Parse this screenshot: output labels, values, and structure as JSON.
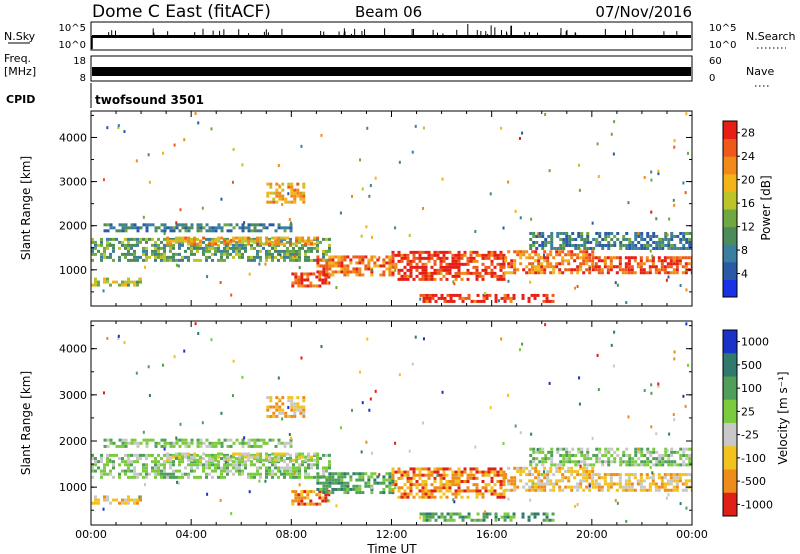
{
  "header": {
    "station": "Dome C East (fitACF)",
    "beam": "Beam 06",
    "date": "07/Nov/2016"
  },
  "noise_panel": {
    "left_label": "N.Sky",
    "right_label": "N.Search",
    "left_ticks": [
      "10^5",
      "10^0"
    ],
    "right_ticks": [
      "10^5",
      "10^0"
    ]
  },
  "freq_panel": {
    "left_label_line1": "Freq.",
    "left_label_line2": "[MHz]",
    "right_label": "Nave",
    "left_ticks": [
      "18",
      "8"
    ],
    "right_ticks": [
      "60",
      "0"
    ]
  },
  "cpid": {
    "label": "CPID",
    "value": "twofsound 3501"
  },
  "x_axis": {
    "label": "Time UT",
    "ticks": [
      "00:00",
      "04:00",
      "08:00",
      "12:00",
      "16:00",
      "20:00",
      "00:00"
    ],
    "range_hours": [
      0,
      24
    ]
  },
  "power_panel": {
    "ylabel": "Slant Range [km]",
    "yticks": [
      "1000",
      "2000",
      "3000",
      "4000"
    ],
    "colorbar_label": "Power [dB]",
    "colorbar_ticks": [
      "4",
      "8",
      "12",
      "16",
      "20",
      "24",
      "28"
    ]
  },
  "velocity_panel": {
    "ylabel": "Slant Range [km]",
    "yticks": [
      "1000",
      "2000",
      "3000",
      "4000"
    ],
    "colorbar_label": "Velocity [m s⁻¹]",
    "colorbar_ticks": [
      "1000",
      "500",
      "100",
      "25",
      "-25",
      "-100",
      "-500",
      "-1000"
    ]
  },
  "chart_data": {
    "type": "heatmap",
    "x_units": "hours UT",
    "y_units": "km",
    "xlim": [
      0,
      24
    ],
    "ylim": [
      180,
      4600
    ],
    "power_colorscale": {
      "range_db": [
        0,
        30
      ],
      "colors": [
        "#1a32e6",
        "#2a5aa6",
        "#3a7fa0",
        "#4c8c5c",
        "#6fa840",
        "#bcc42a",
        "#f2b418",
        "#f28a1a",
        "#ee5a1a",
        "#e61e14"
      ]
    },
    "velocity_colorscale": {
      "levels": [
        1000,
        500,
        100,
        25,
        -25,
        -100,
        -500,
        -1000
      ],
      "colors": [
        "#1a32c8",
        "#2f7a6c",
        "#4f9e5a",
        "#7acb3e",
        "#c8c8c8",
        "#f2c21e",
        "#ee8c1a",
        "#e02018"
      ]
    },
    "echo_regions": [
      {
        "t": [
          0.0,
          2.0
        ],
        "r": [
          620,
          800
        ],
        "power": 16,
        "vel": -100
      },
      {
        "t": [
          0.0,
          9.5
        ],
        "r": [
          1180,
          1700
        ],
        "power": 12,
        "vel": 25
      },
      {
        "t": [
          0.5,
          8.0
        ],
        "r": [
          1850,
          2050
        ],
        "power": 8,
        "vel": 25
      },
      {
        "t": [
          3.0,
          9.0
        ],
        "r": [
          1550,
          1700
        ],
        "power": 20,
        "vel": -25
      },
      {
        "t": [
          7.0,
          8.5
        ],
        "r": [
          2500,
          2950
        ],
        "power": 20,
        "vel": -100
      },
      {
        "t": [
          8.0,
          9.5
        ],
        "r": [
          600,
          900
        ],
        "power": 26,
        "vel": -500
      },
      {
        "t": [
          9.0,
          12.0
        ],
        "r": [
          850,
          1300
        ],
        "power": 24,
        "vel": 100
      },
      {
        "t": [
          12.0,
          16.5
        ],
        "r": [
          750,
          1400
        ],
        "power": 28,
        "vel": -500
      },
      {
        "t": [
          16.5,
          20.0
        ],
        "r": [
          900,
          1400
        ],
        "power": 24,
        "vel": -100
      },
      {
        "t": [
          20.0,
          24.0
        ],
        "r": [
          900,
          1300
        ],
        "power": 26,
        "vel": -100
      },
      {
        "t": [
          17.5,
          24.0
        ],
        "r": [
          1450,
          1800
        ],
        "power": 8,
        "vel": 25
      },
      {
        "t": [
          13.0,
          18.5
        ],
        "r": [
          250,
          400
        ],
        "power": 28,
        "vel": 100
      }
    ]
  }
}
